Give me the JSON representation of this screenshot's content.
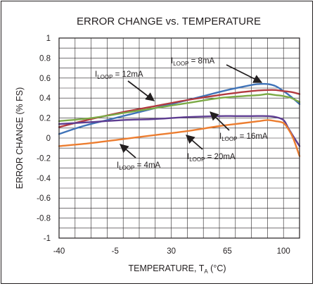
{
  "chart_data": {
    "type": "line",
    "title": "ERROR CHANGE vs. TEMPERATURE",
    "xlabel": {
      "main": "TEMPERATURE, T",
      "sub": "A",
      "unit": " (°C)"
    },
    "ylabel": "ERROR CHANGE (% FS)",
    "xlim": [
      -40,
      110
    ],
    "ylim": [
      -1,
      1
    ],
    "xticks": [
      -40,
      -5,
      30,
      65,
      100
    ],
    "xtick_labels": [
      "-40",
      "-5",
      "30",
      "65",
      "100"
    ],
    "yticks": [
      -1,
      -0.8,
      -0.6,
      -0.4,
      -0.2,
      0,
      0.2,
      0.4,
      0.6,
      0.8,
      1
    ],
    "ytick_labels": [
      "-1",
      "-0.8",
      "-0.6",
      "-0.4",
      "-0.2",
      "0",
      "0.2",
      "0.4",
      "0.6",
      "0.8",
      "1"
    ],
    "grid": true,
    "series": [
      {
        "color": "#3f73b8",
        "x": [
          -40,
          -25,
          -10,
          5,
          20,
          35,
          50,
          65,
          80,
          85,
          90,
          95,
          100,
          105,
          110
        ],
        "y": [
          0.04,
          0.12,
          0.18,
          0.24,
          0.3,
          0.36,
          0.42,
          0.48,
          0.53,
          0.54,
          0.54,
          0.52,
          0.47,
          0.41,
          0.34
        ]
      },
      {
        "color": "#b23a3f",
        "x": [
          -40,
          -20,
          0,
          20,
          40,
          60,
          80,
          90,
          95,
          100,
          105,
          110
        ],
        "y": [
          0.11,
          0.19,
          0.26,
          0.32,
          0.38,
          0.43,
          0.47,
          0.48,
          0.48,
          0.47,
          0.46,
          0.44
        ]
      },
      {
        "color": "#7caa46",
        "x": [
          -40,
          -20,
          0,
          20,
          40,
          60,
          75,
          85,
          90,
          95,
          100,
          105,
          110
        ],
        "y": [
          0.17,
          0.2,
          0.25,
          0.3,
          0.35,
          0.4,
          0.42,
          0.43,
          0.44,
          0.43,
          0.42,
          0.4,
          0.36
        ]
      },
      {
        "color": "#5e3d91",
        "x": [
          -40,
          -20,
          0,
          20,
          40,
          60,
          70,
          80,
          90,
          95,
          100,
          103,
          106,
          110
        ],
        "y": [
          0.14,
          0.16,
          0.18,
          0.19,
          0.21,
          0.22,
          0.22,
          0.22,
          0.22,
          0.21,
          0.18,
          0.1,
          0.02,
          -0.08
        ]
      },
      {
        "color": "#ec7d30",
        "x": [
          -40,
          -20,
          0,
          20,
          40,
          60,
          70,
          80,
          85,
          90,
          95,
          100,
          103,
          106,
          110
        ],
        "y": [
          -0.08,
          -0.05,
          -0.01,
          0.03,
          0.07,
          0.12,
          0.14,
          0.16,
          0.17,
          0.18,
          0.17,
          0.15,
          0.09,
          0.0,
          -0.18
        ]
      }
    ],
    "annotations": [
      {
        "main": "I",
        "sub": "LOOP",
        "suffix": " = 8mA"
      },
      {
        "main": "I",
        "sub": "LOOP",
        "suffix": " = 12mA"
      },
      {
        "main": "I",
        "sub": "LOOP",
        "suffix": " = 16mA"
      },
      {
        "main": "I",
        "sub": "LOOP",
        "suffix": " = 20mA"
      },
      {
        "main": "I",
        "sub": "LOOP",
        "suffix": " = 4mA"
      }
    ]
  }
}
